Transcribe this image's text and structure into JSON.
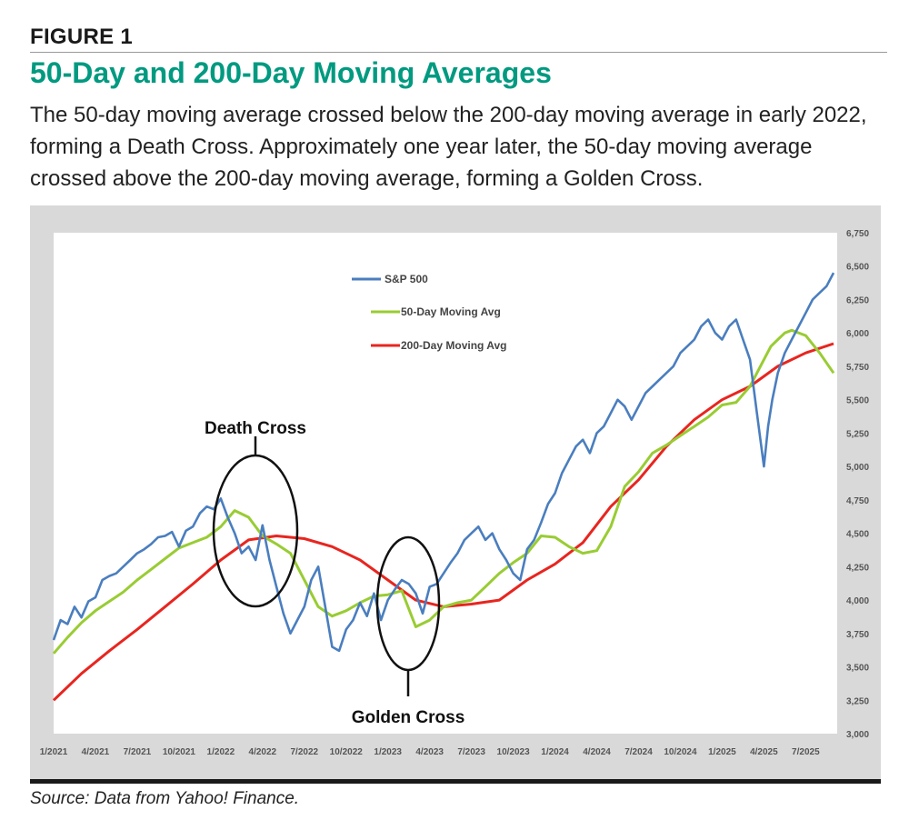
{
  "figure": {
    "label": "FIGURE 1",
    "title": "50-Day and 200-Day Moving Averages",
    "caption": "The 50-day moving average crossed below the 200-day moving average in early 2022, forming a Death Cross. Approximately one year later, the 50-day moving average crossed above the 200-day moving average, forming a Golden Cross.",
    "source": "Source: Data from Yahoo! Finance."
  },
  "colors": {
    "title": "#009a80",
    "sp500": "#4a7ebf",
    "ma50": "#99cc33",
    "ma200": "#e8251f",
    "panel": "#d9d9d9"
  },
  "chart_data": {
    "type": "line",
    "title": "",
    "xlabel": "",
    "ylabel": "",
    "ylim": [
      3000,
      6750
    ],
    "yticks": [
      3000,
      3250,
      3500,
      3750,
      4000,
      4250,
      4500,
      4750,
      5000,
      5250,
      5500,
      5750,
      6000,
      6250,
      6500,
      6750
    ],
    "ytick_labels": [
      "3,000",
      "3,250",
      "3,500",
      "3,750",
      "4,000",
      "4,250",
      "4,500",
      "4,750",
      "5,000",
      "5,250",
      "5,500",
      "5,750",
      "6,000",
      "6,250",
      "6,500",
      "6,750"
    ],
    "xlim": [
      0,
      56
    ],
    "xtick_positions": [
      0,
      3,
      6,
      9,
      12,
      15,
      18,
      21,
      24,
      27,
      30,
      33,
      36,
      39,
      42,
      45,
      48,
      51,
      54
    ],
    "xtick_labels": [
      "1/2021",
      "4/2021",
      "7/2021",
      "10/2021",
      "1/2022",
      "4/2022",
      "7/2022",
      "10/2022",
      "1/2023",
      "4/2023",
      "7/2023",
      "10/2023",
      "1/2024",
      "4/2024",
      "7/2024",
      "10/2024",
      "1/2025",
      "4/2025",
      "7/2025"
    ],
    "legend_position": "top-center",
    "series": [
      {
        "name": "S&P 500",
        "key": "sp500",
        "x": [
          0,
          0.5,
          1,
          1.5,
          2,
          2.5,
          3,
          3.5,
          4,
          4.5,
          5,
          5.5,
          6,
          6.5,
          7,
          7.5,
          8,
          8.5,
          9,
          9.5,
          10,
          10.5,
          11,
          11.5,
          12,
          12.5,
          13,
          13.5,
          14,
          14.5,
          15,
          15.5,
          16,
          16.5,
          17,
          17.5,
          18,
          18.5,
          19,
          19.5,
          20,
          20.5,
          21,
          21.5,
          22,
          22.5,
          23,
          23.5,
          24,
          24.5,
          25,
          25.5,
          26,
          26.5,
          27,
          27.5,
          28,
          28.5,
          29,
          29.5,
          30,
          30.5,
          31,
          31.5,
          32,
          32.5,
          33,
          33.5,
          34,
          34.5,
          35,
          35.5,
          36,
          36.5,
          37,
          37.5,
          38,
          38.5,
          39,
          39.5,
          40,
          40.5,
          41,
          41.5,
          42,
          42.5,
          43,
          43.5,
          44,
          44.5,
          45,
          45.5,
          46,
          46.5,
          47,
          47.5,
          48,
          48.5,
          49,
          49.5,
          50,
          50.5,
          51,
          51.3,
          51.6,
          52,
          52.5,
          53,
          53.5,
          54,
          54.5,
          55,
          55.5,
          56
        ],
        "values": [
          3700,
          3850,
          3820,
          3950,
          3870,
          3990,
          4020,
          4150,
          4180,
          4200,
          4250,
          4300,
          4350,
          4380,
          4420,
          4470,
          4480,
          4510,
          4400,
          4520,
          4550,
          4650,
          4700,
          4680,
          4760,
          4620,
          4500,
          4350,
          4400,
          4300,
          4560,
          4300,
          4100,
          3900,
          3750,
          3850,
          3950,
          4150,
          4250,
          3950,
          3650,
          3620,
          3780,
          3850,
          3980,
          3880,
          4050,
          3850,
          4000,
          4080,
          4150,
          4120,
          4050,
          3900,
          4100,
          4120,
          4200,
          4280,
          4350,
          4450,
          4500,
          4550,
          4450,
          4500,
          4380,
          4300,
          4200,
          4150,
          4380,
          4450,
          4580,
          4720,
          4800,
          4950,
          5050,
          5150,
          5200,
          5100,
          5250,
          5300,
          5400,
          5500,
          5450,
          5350,
          5450,
          5550,
          5600,
          5650,
          5700,
          5750,
          5850,
          5900,
          5950,
          6050,
          6100,
          6000,
          5950,
          6050,
          6100,
          5950,
          5800,
          5400,
          5000,
          5300,
          5500,
          5700,
          5850,
          5950,
          6050,
          6150,
          6250,
          6300,
          6350,
          6450
        ]
      },
      {
        "name": "50-Day Moving Avg",
        "key": "ma50",
        "x": [
          0,
          1,
          2,
          3,
          4,
          5,
          6,
          7,
          8,
          9,
          10,
          11,
          12,
          13,
          14,
          15,
          16,
          17,
          18,
          19,
          20,
          21,
          22,
          23,
          24,
          25,
          26,
          27,
          28,
          29,
          30,
          31,
          32,
          33,
          34,
          35,
          36,
          37,
          38,
          39,
          40,
          41,
          42,
          43,
          44,
          45,
          46,
          47,
          48,
          49,
          50,
          50.5,
          51,
          51.5,
          52,
          52.5,
          53,
          54,
          55,
          56
        ],
        "values": [
          3600,
          3720,
          3830,
          3920,
          3990,
          4060,
          4150,
          4230,
          4310,
          4390,
          4430,
          4470,
          4550,
          4670,
          4620,
          4480,
          4420,
          4350,
          4150,
          3950,
          3880,
          3920,
          3980,
          4030,
          4040,
          4070,
          3800,
          3850,
          3950,
          3980,
          4000,
          4100,
          4200,
          4280,
          4350,
          4480,
          4470,
          4400,
          4350,
          4370,
          4550,
          4850,
          4960,
          5100,
          5160,
          5230,
          5300,
          5370,
          5460,
          5480,
          5600,
          5700,
          5800,
          5900,
          5950,
          6000,
          6020,
          5980,
          5850,
          5700
        ]
      },
      {
        "name": "200-Day Moving Avg",
        "key": "ma200",
        "x": [
          0,
          2,
          4,
          6,
          8,
          10,
          12,
          14,
          16,
          18,
          20,
          22,
          24,
          26,
          28,
          30,
          32,
          34,
          36,
          38,
          40,
          42,
          44,
          46,
          48,
          50,
          52,
          54,
          56
        ],
        "values": [
          3250,
          3450,
          3620,
          3780,
          3950,
          4120,
          4300,
          4450,
          4480,
          4460,
          4400,
          4300,
          4150,
          4000,
          3950,
          3970,
          4000,
          4150,
          4270,
          4430,
          4700,
          4900,
          5150,
          5350,
          5500,
          5600,
          5750,
          5850,
          5920
        ]
      }
    ],
    "annotations": [
      {
        "label": "Death Cross",
        "target_x": 15.5,
        "target_y": 4450
      },
      {
        "label": "Golden Cross",
        "target_x": 28.0,
        "target_y": 4100
      }
    ]
  }
}
